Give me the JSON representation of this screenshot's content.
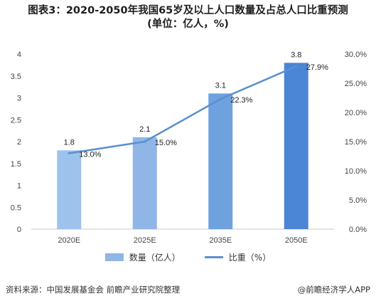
{
  "title_line1": "图表3：2020-2050年我国65岁及以上人口数量及占总人口比重预测",
  "title_line2": "(单位：亿人，%)",
  "chart_data": {
    "type": "bar+line",
    "categories": [
      "2020E",
      "2025E",
      "2035E",
      "2050E"
    ],
    "series": [
      {
        "name": "数量（亿人）",
        "type": "bar",
        "axis": "left",
        "values": [
          1.8,
          2.1,
          3.1,
          3.8
        ],
        "labels": [
          "1.8",
          "2.1",
          "3.1",
          "3.8"
        ]
      },
      {
        "name": "比重（%）",
        "type": "line",
        "axis": "right",
        "values": [
          13.0,
          15.0,
          22.3,
          27.9
        ],
        "labels": [
          "13.0%",
          "15.0%",
          "22.3%",
          "27.9%"
        ]
      }
    ],
    "y_left": {
      "min": 0,
      "max": 4,
      "ticks": [
        "0",
        "0.5",
        "1",
        "1.5",
        "2",
        "2.5",
        "3",
        "3.5",
        "4"
      ]
    },
    "y_right": {
      "min": 0,
      "max": 30,
      "ticks": [
        "0.0%",
        "5.0%",
        "10.0%",
        "15.0%",
        "20.0%",
        "25.0%",
        "30.0%"
      ]
    },
    "bar_colors": [
      "#9dc3ec",
      "#8fb6e6",
      "#6fa1df",
      "#4a86d4"
    ],
    "line_color": "#5b8fd0",
    "grid": false,
    "legend_position": "bottom"
  },
  "legend": {
    "bar_label": "数量（亿人）",
    "line_label": "比重（%）"
  },
  "footer": {
    "source": "资料来源：中国发展基金会 前瞻产业研究院整理",
    "brand": "@前瞻经济学人APP"
  }
}
